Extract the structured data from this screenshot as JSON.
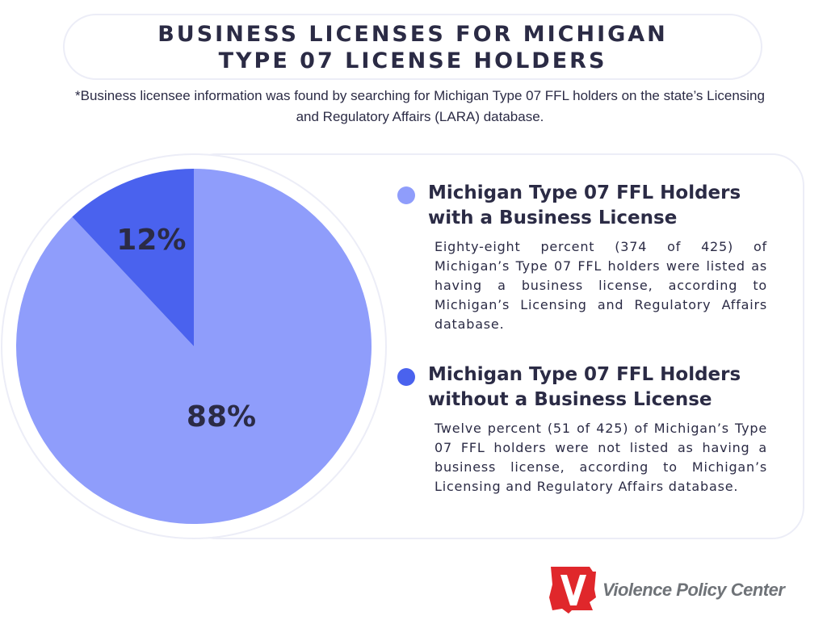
{
  "header": {
    "title_line1": "BUSINESS LICENSES FOR MICHIGAN",
    "title_line2": "TYPE 07 LICENSE HOLDERS",
    "note": "*Business licensee information was found by searching for Michigan Type 07 FFL holders on the state’s Licensing and Regulatory Affairs (LARA) database."
  },
  "chart_data": {
    "type": "pie",
    "title": "",
    "slices": [
      {
        "name": "Michigan Type 07 FFL Holders with a Business License",
        "value": 88,
        "label": "88%",
        "color": "#8f9dfb"
      },
      {
        "name": "Michigan Type 07 FFL Holders without a Business License",
        "value": 12,
        "label": "12%",
        "color": "#4a62ee"
      }
    ]
  },
  "legend": [
    {
      "heading_line1": "Michigan Type 07 FFL Holders",
      "heading_line2": "with a Business License",
      "color": "#8f9dfb",
      "description": "Eighty-eight percent (374 of 425) of Michigan’s Type 07 FFL holders were listed as having a business license, according to Michigan’s Licensing and Regulatory Affairs database."
    },
    {
      "heading_line1": "Michigan Type 07 FFL Holders",
      "heading_line2": "without a Business License",
      "color": "#4a62ee",
      "description": "Twelve percent (51 of 425) of Michigan’s Type 07 FFL holders were not listed as having a business license, according to Michigan’s Licensing and Regulatory Affairs database."
    }
  ],
  "footer": {
    "logo_text": "Violence Policy Center",
    "logo_letter": "V",
    "logo_color": "#e0272b"
  }
}
